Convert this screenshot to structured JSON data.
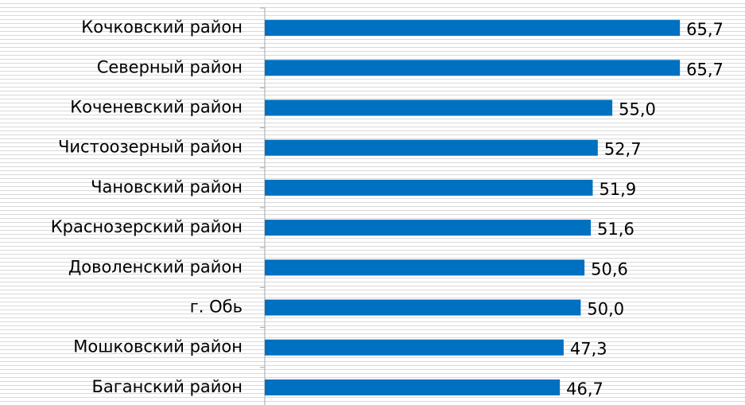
{
  "chart_data": {
    "type": "bar",
    "orientation": "horizontal",
    "categories": [
      "Кочковский район",
      "Северный район",
      "Коченевский район",
      "Чистоозерный район",
      "Чановский район",
      "Краснозерский район",
      "Доволенский район",
      "г. Обь",
      "Мошковский район",
      "Баганский район"
    ],
    "values": [
      65.7,
      65.7,
      55.0,
      52.7,
      51.9,
      51.6,
      50.6,
      50.0,
      47.3,
      46.7
    ],
    "value_labels": [
      "65,7",
      "65,7",
      "55,0",
      "52,7",
      "51,9",
      "51,6",
      "50,6",
      "50,0",
      "47,3",
      "46,7"
    ],
    "color": "#0070c0",
    "xlim": [
      0,
      76
    ]
  }
}
